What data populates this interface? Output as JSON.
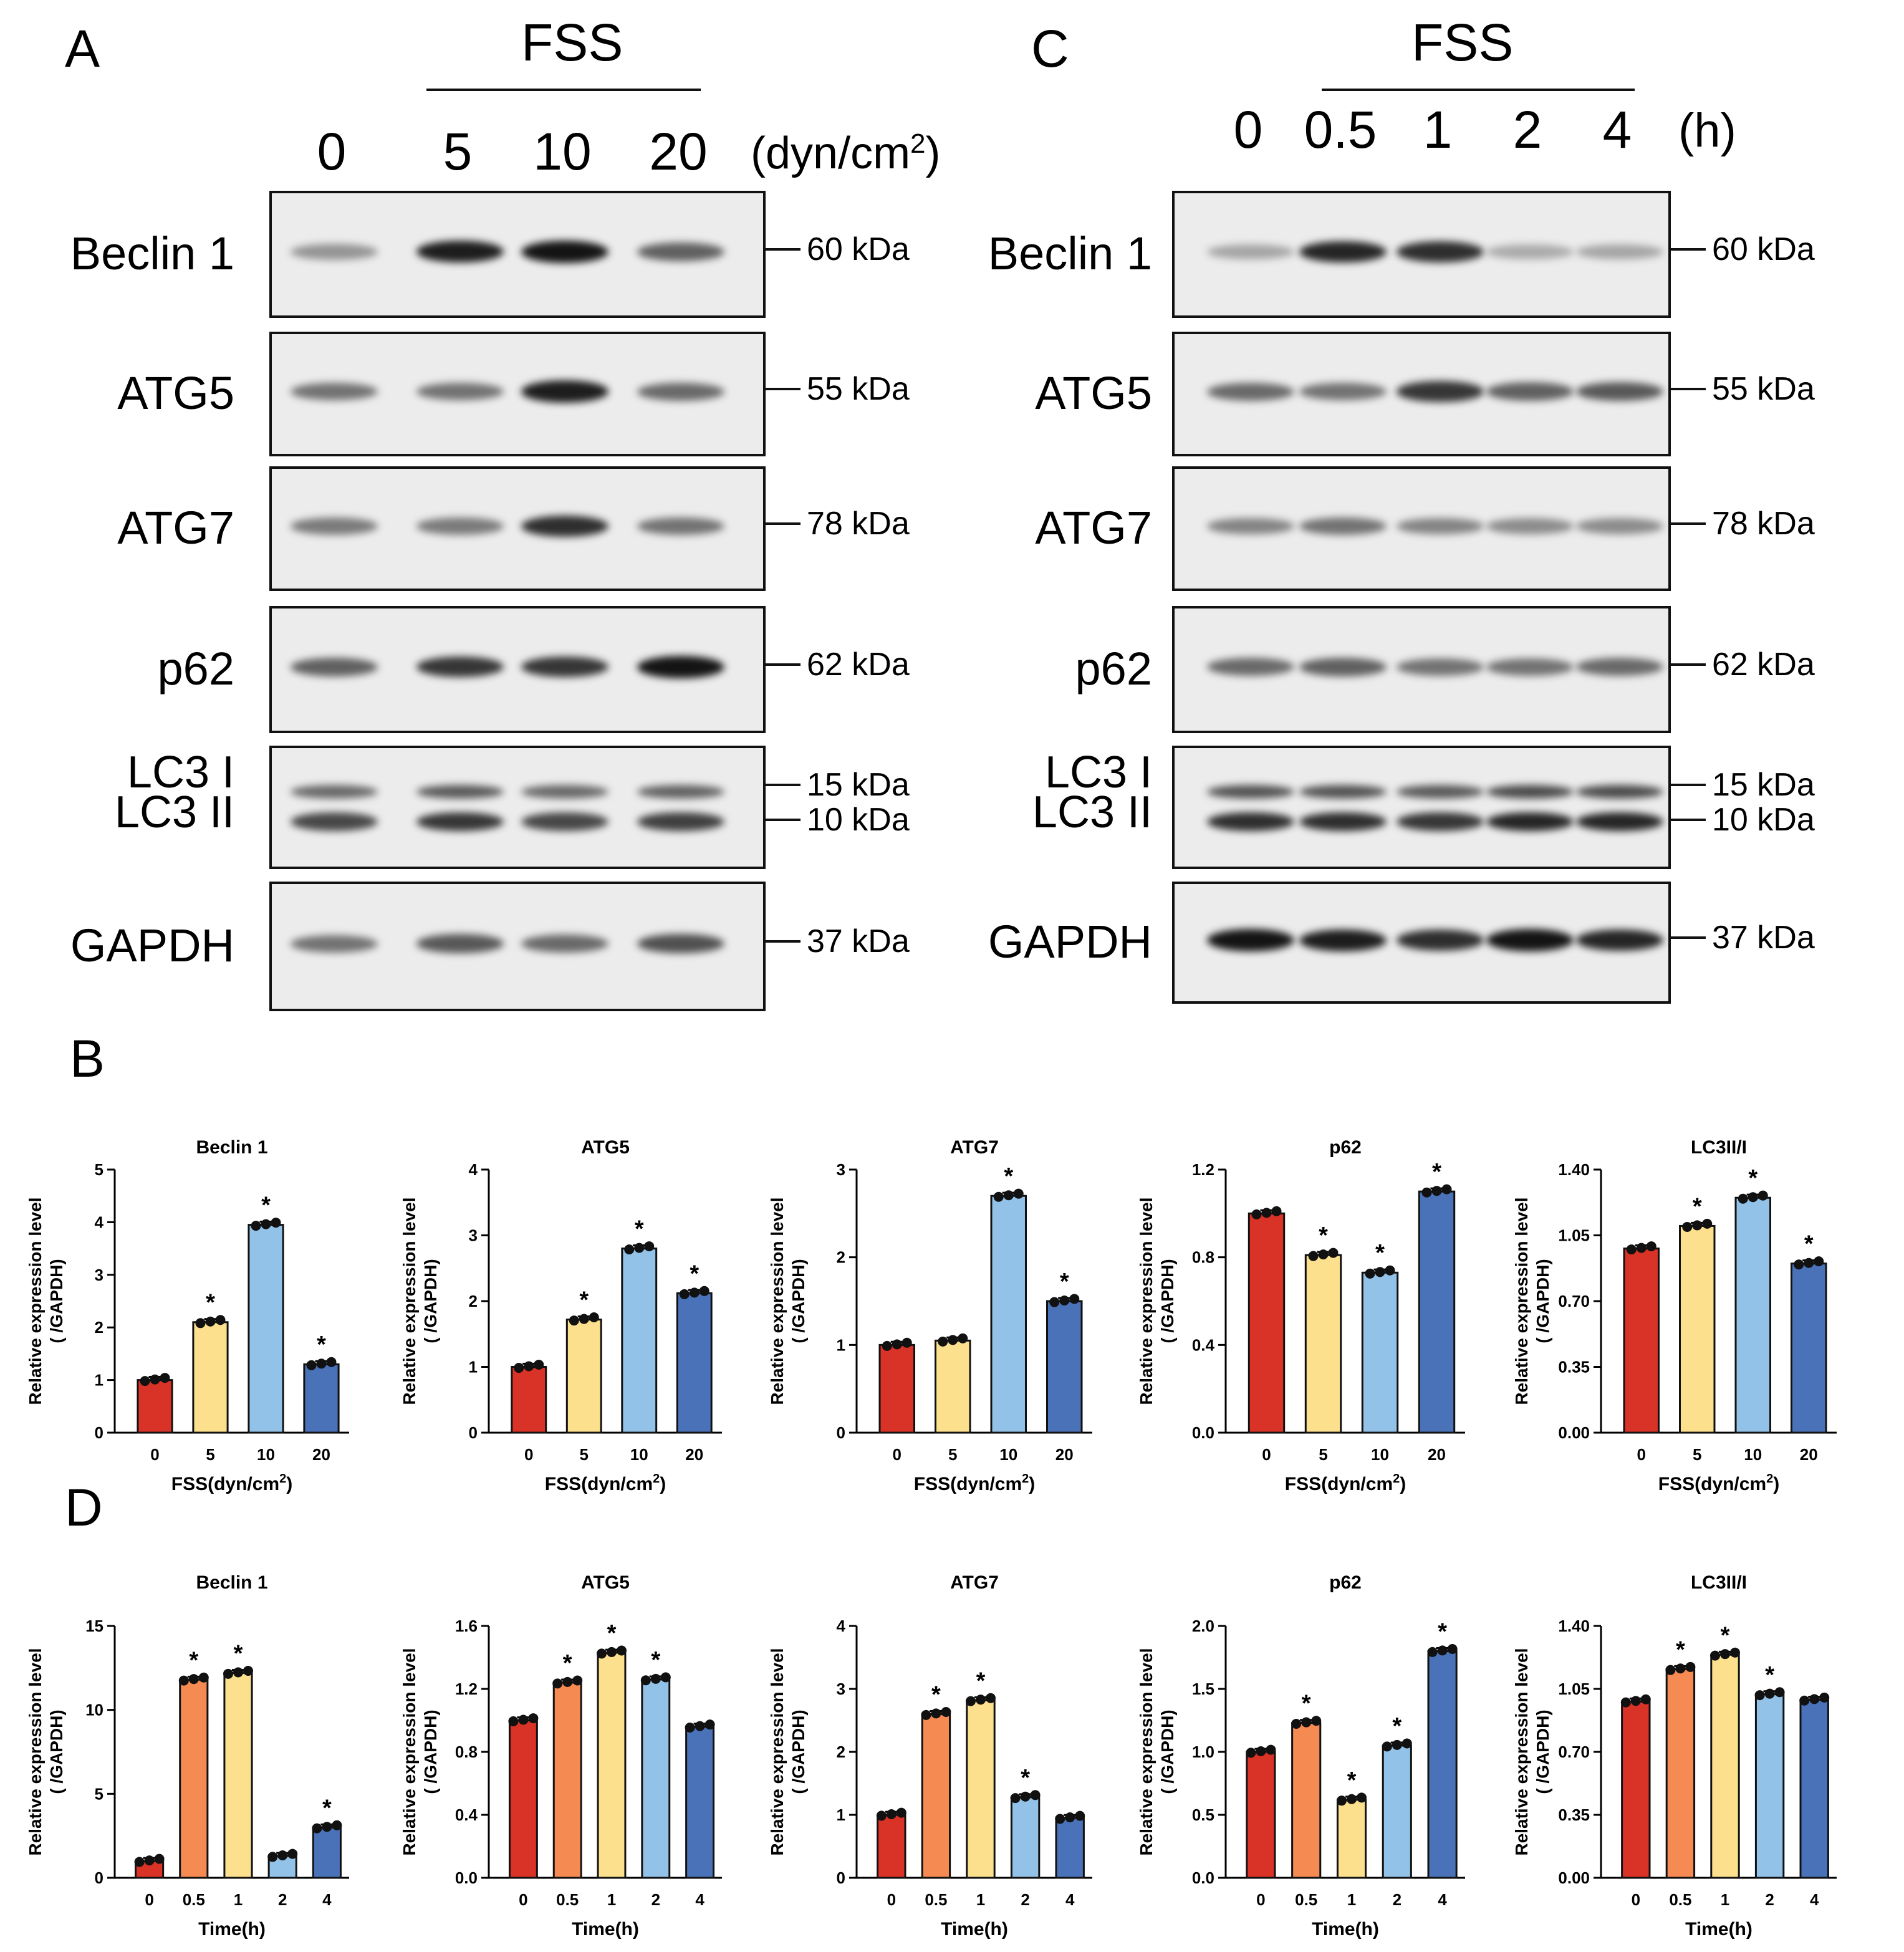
{
  "panels": {
    "A": "A",
    "B": "B",
    "C": "C",
    "D": "D"
  },
  "blotA": {
    "fss": "FSS",
    "lanes": [
      "0",
      "5",
      "10",
      "20"
    ],
    "unit_prefix": "(dyn/cm",
    "unit_sup": "2",
    "unit_suffix": ")",
    "rows": [
      {
        "label": "Beclin 1",
        "mw": [
          "60 kDa"
        ],
        "intensity": [
          0.25,
          0.95,
          1.0,
          0.55
        ]
      },
      {
        "label": "ATG5",
        "mw": [
          "55 kDa"
        ],
        "intensity": [
          0.45,
          0.45,
          0.95,
          0.5
        ]
      },
      {
        "label": "ATG7",
        "mw": [
          "78 kDa"
        ],
        "intensity": [
          0.4,
          0.4,
          0.85,
          0.45
        ]
      },
      {
        "label": "p62",
        "mw": [
          "62 kDa"
        ],
        "intensity": [
          0.55,
          0.8,
          0.8,
          1.0
        ]
      },
      {
        "label": "LC3 I",
        "label2": "LC3 II",
        "mw": [
          "15 kDa",
          "10 kDa"
        ],
        "intensity": [
          0.7,
          0.8,
          0.7,
          0.75
        ]
      },
      {
        "label": "GAPDH",
        "mw": [
          "37 kDa"
        ],
        "intensity": [
          0.45,
          0.6,
          0.5,
          0.65
        ]
      }
    ]
  },
  "blotC": {
    "fss": "FSS",
    "lanes": [
      "0",
      "0.5",
      "1",
      "2",
      "4"
    ],
    "unit": "(h)",
    "rows": [
      {
        "label": "Beclin 1",
        "mw": [
          "60 kDa"
        ],
        "intensity": [
          0.15,
          0.9,
          0.85,
          0.12,
          0.15
        ]
      },
      {
        "label": "ATG5",
        "mw": [
          "55 kDa"
        ],
        "intensity": [
          0.5,
          0.45,
          0.8,
          0.55,
          0.6
        ]
      },
      {
        "label": "ATG7",
        "mw": [
          "78 kDa"
        ],
        "intensity": [
          0.35,
          0.45,
          0.35,
          0.3,
          0.3
        ]
      },
      {
        "label": "p62",
        "mw": [
          "62 kDa"
        ],
        "intensity": [
          0.5,
          0.55,
          0.45,
          0.45,
          0.5
        ]
      },
      {
        "label": "LC3 I",
        "label2": "LC3 II",
        "mw": [
          "15 kDa",
          "10 kDa"
        ],
        "intensity": [
          0.85,
          0.85,
          0.8,
          0.9,
          0.9
        ]
      },
      {
        "label": "GAPDH",
        "mw": [
          "37 kDa"
        ],
        "intensity": [
          1.0,
          0.95,
          0.85,
          1.0,
          0.9
        ]
      }
    ]
  },
  "ylabel_line1": "Relative expression level",
  "ylabel_line2": "( /GAPDH)",
  "chart_data": [
    {
      "type": "bar",
      "panel": "B",
      "title": "Beclin 1",
      "categories": [
        "0",
        "5",
        "10",
        "20"
      ],
      "values": [
        1.0,
        2.1,
        3.95,
        1.3
      ],
      "significant": [
        false,
        true,
        true,
        true
      ],
      "ylim": [
        0,
        5
      ],
      "yticks": [
        "0",
        "1",
        "2",
        "3",
        "4",
        "5"
      ],
      "xlabel": "FSS(dyn/cm",
      "xlabel_sup": "2",
      "xlabel_end": ")",
      "colors": [
        "#d93226",
        "#fde08d",
        "#92c2e8",
        "#4a72b8"
      ]
    },
    {
      "type": "bar",
      "panel": "B",
      "title": "ATG5",
      "categories": [
        "0",
        "5",
        "10",
        "20"
      ],
      "values": [
        1.0,
        1.72,
        2.8,
        2.12
      ],
      "significant": [
        false,
        true,
        true,
        true
      ],
      "ylim": [
        0,
        4
      ],
      "yticks": [
        "0",
        "1",
        "2",
        "3",
        "4"
      ],
      "xlabel": "FSS(dyn/cm",
      "xlabel_sup": "2",
      "xlabel_end": ")",
      "colors": [
        "#d93226",
        "#fde08d",
        "#92c2e8",
        "#4a72b8"
      ]
    },
    {
      "type": "bar",
      "panel": "B",
      "title": "ATG7",
      "categories": [
        "0",
        "5",
        "10",
        "20"
      ],
      "values": [
        1.0,
        1.05,
        2.7,
        1.5
      ],
      "significant": [
        false,
        false,
        true,
        true
      ],
      "ylim": [
        0,
        3
      ],
      "yticks": [
        "0",
        "1",
        "2",
        "3"
      ],
      "xlabel": "FSS(dyn/cm",
      "xlabel_sup": "2",
      "xlabel_end": ")",
      "colors": [
        "#d93226",
        "#fde08d",
        "#92c2e8",
        "#4a72b8"
      ]
    },
    {
      "type": "bar",
      "panel": "B",
      "title": "p62",
      "categories": [
        "0",
        "5",
        "10",
        "20"
      ],
      "values": [
        1.0,
        0.81,
        0.73,
        1.1
      ],
      "significant": [
        false,
        true,
        true,
        true
      ],
      "ylim": [
        0,
        1.2
      ],
      "yticks": [
        "0.0",
        "0.4",
        "0.8",
        "1.2"
      ],
      "xlabel": "FSS(dyn/cm",
      "xlabel_sup": "2",
      "xlabel_end": ")",
      "colors": [
        "#d93226",
        "#fde08d",
        "#92c2e8",
        "#4a72b8"
      ]
    },
    {
      "type": "bar",
      "panel": "B",
      "title": "LC3II/I",
      "categories": [
        "0",
        "5",
        "10",
        "20"
      ],
      "values": [
        0.98,
        1.1,
        1.25,
        0.9
      ],
      "significant": [
        false,
        true,
        true,
        true
      ],
      "ylim": [
        0,
        1.4
      ],
      "yticks": [
        "0.00",
        "0.35",
        "0.70",
        "1.05",
        "1.40"
      ],
      "xlabel": "FSS(dyn/cm",
      "xlabel_sup": "2",
      "xlabel_end": ")",
      "colors": [
        "#d93226",
        "#fde08d",
        "#92c2e8",
        "#4a72b8"
      ]
    },
    {
      "type": "bar",
      "panel": "D",
      "title": "Beclin 1",
      "categories": [
        "0",
        "0.5",
        "1",
        "2",
        "4"
      ],
      "values": [
        1.0,
        11.8,
        12.2,
        1.3,
        3.0
      ],
      "significant": [
        false,
        true,
        true,
        false,
        true
      ],
      "ylim": [
        0,
        15
      ],
      "yticks": [
        "0",
        "5",
        "10",
        "15"
      ],
      "xlabel": "Time(h)",
      "colors": [
        "#d93226",
        "#f58a52",
        "#fde08d",
        "#92c2e8",
        "#4a72b8"
      ]
    },
    {
      "type": "bar",
      "panel": "D",
      "title": "ATG5",
      "categories": [
        "0",
        "0.5",
        "1",
        "2",
        "4"
      ],
      "values": [
        1.0,
        1.24,
        1.43,
        1.26,
        0.96
      ],
      "significant": [
        false,
        true,
        true,
        true,
        false
      ],
      "ylim": [
        0,
        1.6
      ],
      "yticks": [
        "0.0",
        "0.4",
        "0.8",
        "1.2",
        "1.6"
      ],
      "xlabel": "Time(h)",
      "colors": [
        "#d93226",
        "#f58a52",
        "#fde08d",
        "#92c2e8",
        "#4a72b8"
      ]
    },
    {
      "type": "bar",
      "panel": "D",
      "title": "ATG7",
      "categories": [
        "0",
        "0.5",
        "1",
        "2",
        "4"
      ],
      "values": [
        1.0,
        2.6,
        2.82,
        1.28,
        0.95
      ],
      "significant": [
        false,
        true,
        true,
        true,
        false
      ],
      "ylim": [
        0,
        4
      ],
      "yticks": [
        "0",
        "1",
        "2",
        "3",
        "4"
      ],
      "xlabel": "Time(h)",
      "colors": [
        "#d93226",
        "#f58a52",
        "#fde08d",
        "#92c2e8",
        "#4a72b8"
      ]
    },
    {
      "type": "bar",
      "panel": "D",
      "title": "p62",
      "categories": [
        "0",
        "0.5",
        "1",
        "2",
        "4"
      ],
      "values": [
        1.0,
        1.23,
        0.62,
        1.05,
        1.8
      ],
      "significant": [
        false,
        true,
        true,
        true,
        true
      ],
      "ylim": [
        0,
        2.0
      ],
      "yticks": [
        "0.0",
        "0.5",
        "1.0",
        "1.5",
        "2.0"
      ],
      "xlabel": "Time(h)",
      "colors": [
        "#d93226",
        "#f58a52",
        "#fde08d",
        "#92c2e8",
        "#4a72b8"
      ]
    },
    {
      "type": "bar",
      "panel": "D",
      "title": "LC3II/I",
      "categories": [
        "0",
        "0.5",
        "1",
        "2",
        "4"
      ],
      "values": [
        0.98,
        1.16,
        1.24,
        1.02,
        0.99
      ],
      "significant": [
        false,
        true,
        true,
        true,
        false
      ],
      "ylim": [
        0,
        1.4
      ],
      "yticks": [
        "0.00",
        "0.35",
        "0.70",
        "1.05",
        "1.40"
      ],
      "xlabel": "Time(h)",
      "colors": [
        "#d93226",
        "#f58a52",
        "#fde08d",
        "#92c2e8",
        "#4a72b8"
      ]
    }
  ]
}
